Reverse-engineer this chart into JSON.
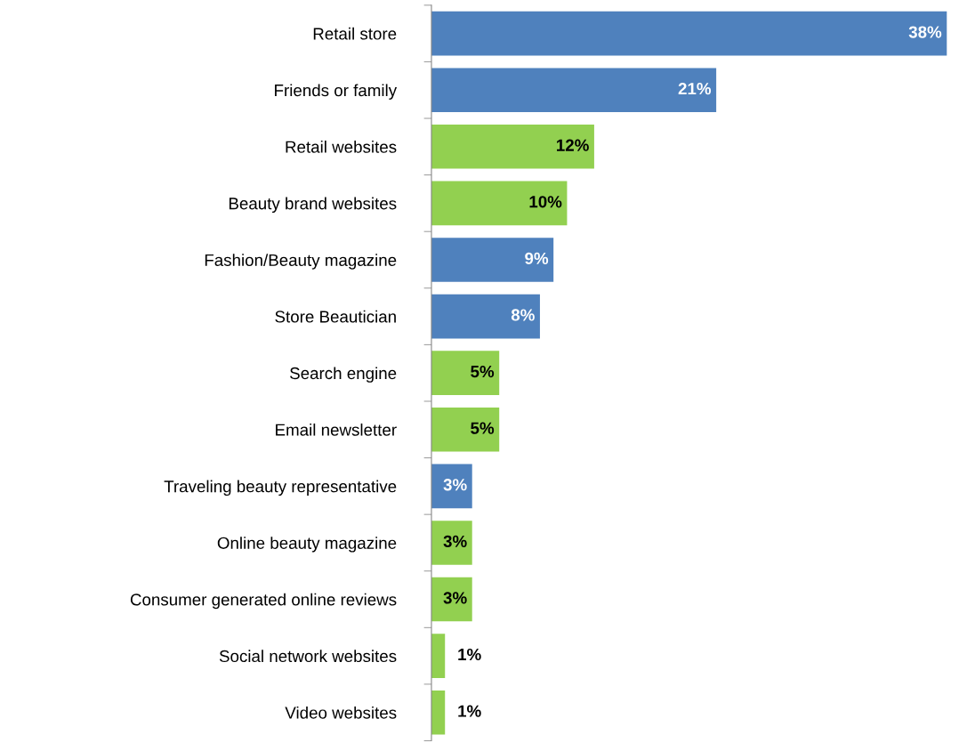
{
  "chart_data": {
    "type": "bar",
    "orientation": "horizontal",
    "data_labels": true,
    "value_labels": [
      "38%",
      "21%",
      "12%",
      "10%",
      "9%",
      "8%",
      "5%",
      "5%",
      "3%",
      "3%",
      "3%",
      "1%",
      "1%"
    ],
    "categories": [
      "Retail store",
      "Friends or family",
      "Retail websites",
      "Beauty brand websites",
      "Fashion/Beauty magazine",
      "Store Beautician",
      "Search engine",
      "Email newsletter",
      "Traveling beauty representative",
      "Online beauty magazine",
      "Consumer generated online reviews",
      "Social network websites",
      "Video websites"
    ],
    "values": [
      38,
      21,
      12,
      10,
      9,
      8,
      5,
      5,
      3,
      3,
      3,
      1,
      1
    ],
    "colors": [
      "#4f81bd",
      "#4f81bd",
      "#92d050",
      "#92d050",
      "#4f81bd",
      "#4f81bd",
      "#92d050",
      "#92d050",
      "#4f81bd",
      "#92d050",
      "#92d050",
      "#92d050",
      "#92d050"
    ],
    "grid": false,
    "legend": false
  }
}
